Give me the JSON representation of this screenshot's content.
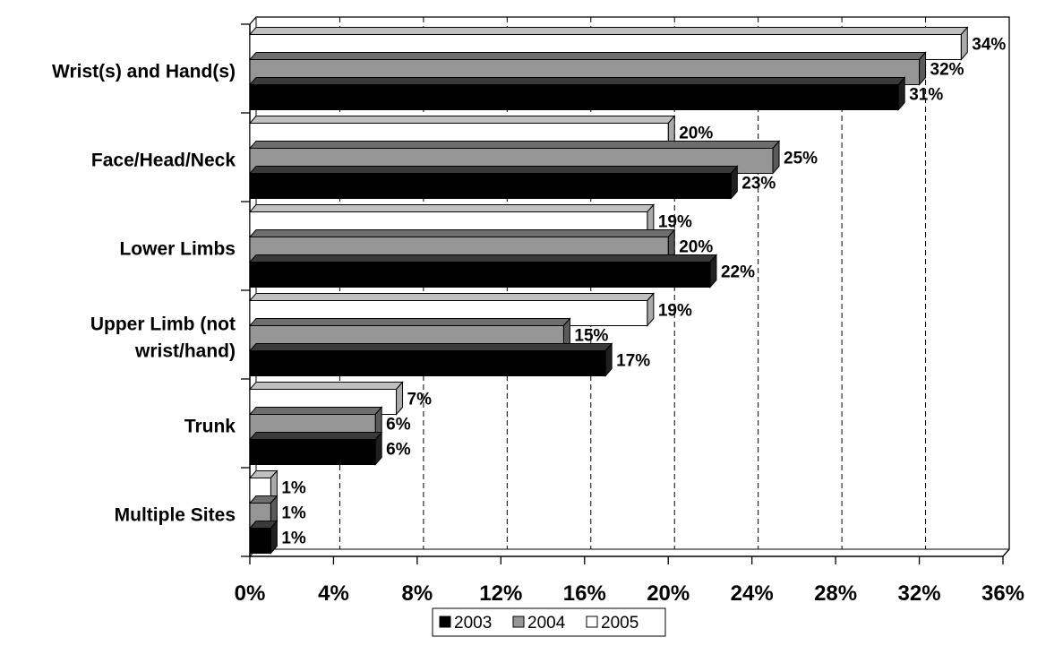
{
  "chart_data": {
    "type": "bar",
    "orientation": "horizontal",
    "style": "3d-clustered",
    "categories": [
      "Wrist(s) and Hand(s)",
      "Face/Head/Neck",
      "Lower Limbs",
      "Upper Limb (not wrist/hand)",
      "Trunk",
      "Multiple Sites"
    ],
    "category_lines": [
      [
        "Wrist(s) and Hand(s)"
      ],
      [
        "Face/Head/Neck"
      ],
      [
        "Lower Limbs"
      ],
      [
        "Upper Limb (not",
        "wrist/hand)"
      ],
      [
        "Trunk"
      ],
      [
        "Multiple Sites"
      ]
    ],
    "series": [
      {
        "name": "2003",
        "color": "#000000",
        "values": [
          31,
          23,
          22,
          17,
          6,
          1
        ]
      },
      {
        "name": "2004",
        "color": "#969696",
        "values": [
          32,
          25,
          20,
          15,
          6,
          1
        ]
      },
      {
        "name": "2005",
        "color": "#ffffff",
        "values": [
          34,
          20,
          19,
          19,
          7,
          1
        ]
      }
    ],
    "data_labels": [
      [
        "31%",
        "23%",
        "22%",
        "17%",
        "6%",
        "1%"
      ],
      [
        "32%",
        "25%",
        "20%",
        "15%",
        "6%",
        "1%"
      ],
      [
        "34%",
        "20%",
        "19%",
        "19%",
        "7%",
        "1%"
      ]
    ],
    "xlim": [
      0,
      36
    ],
    "x_ticks": [
      0,
      4,
      8,
      12,
      16,
      20,
      24,
      28,
      32,
      36
    ],
    "x_tick_labels": [
      "0%",
      "4%",
      "8%",
      "12%",
      "16%",
      "20%",
      "24%",
      "28%",
      "32%",
      "36%"
    ],
    "grid": "vertical dashed",
    "legend_position": "bottom",
    "title": "",
    "xlabel": "",
    "ylabel": ""
  }
}
